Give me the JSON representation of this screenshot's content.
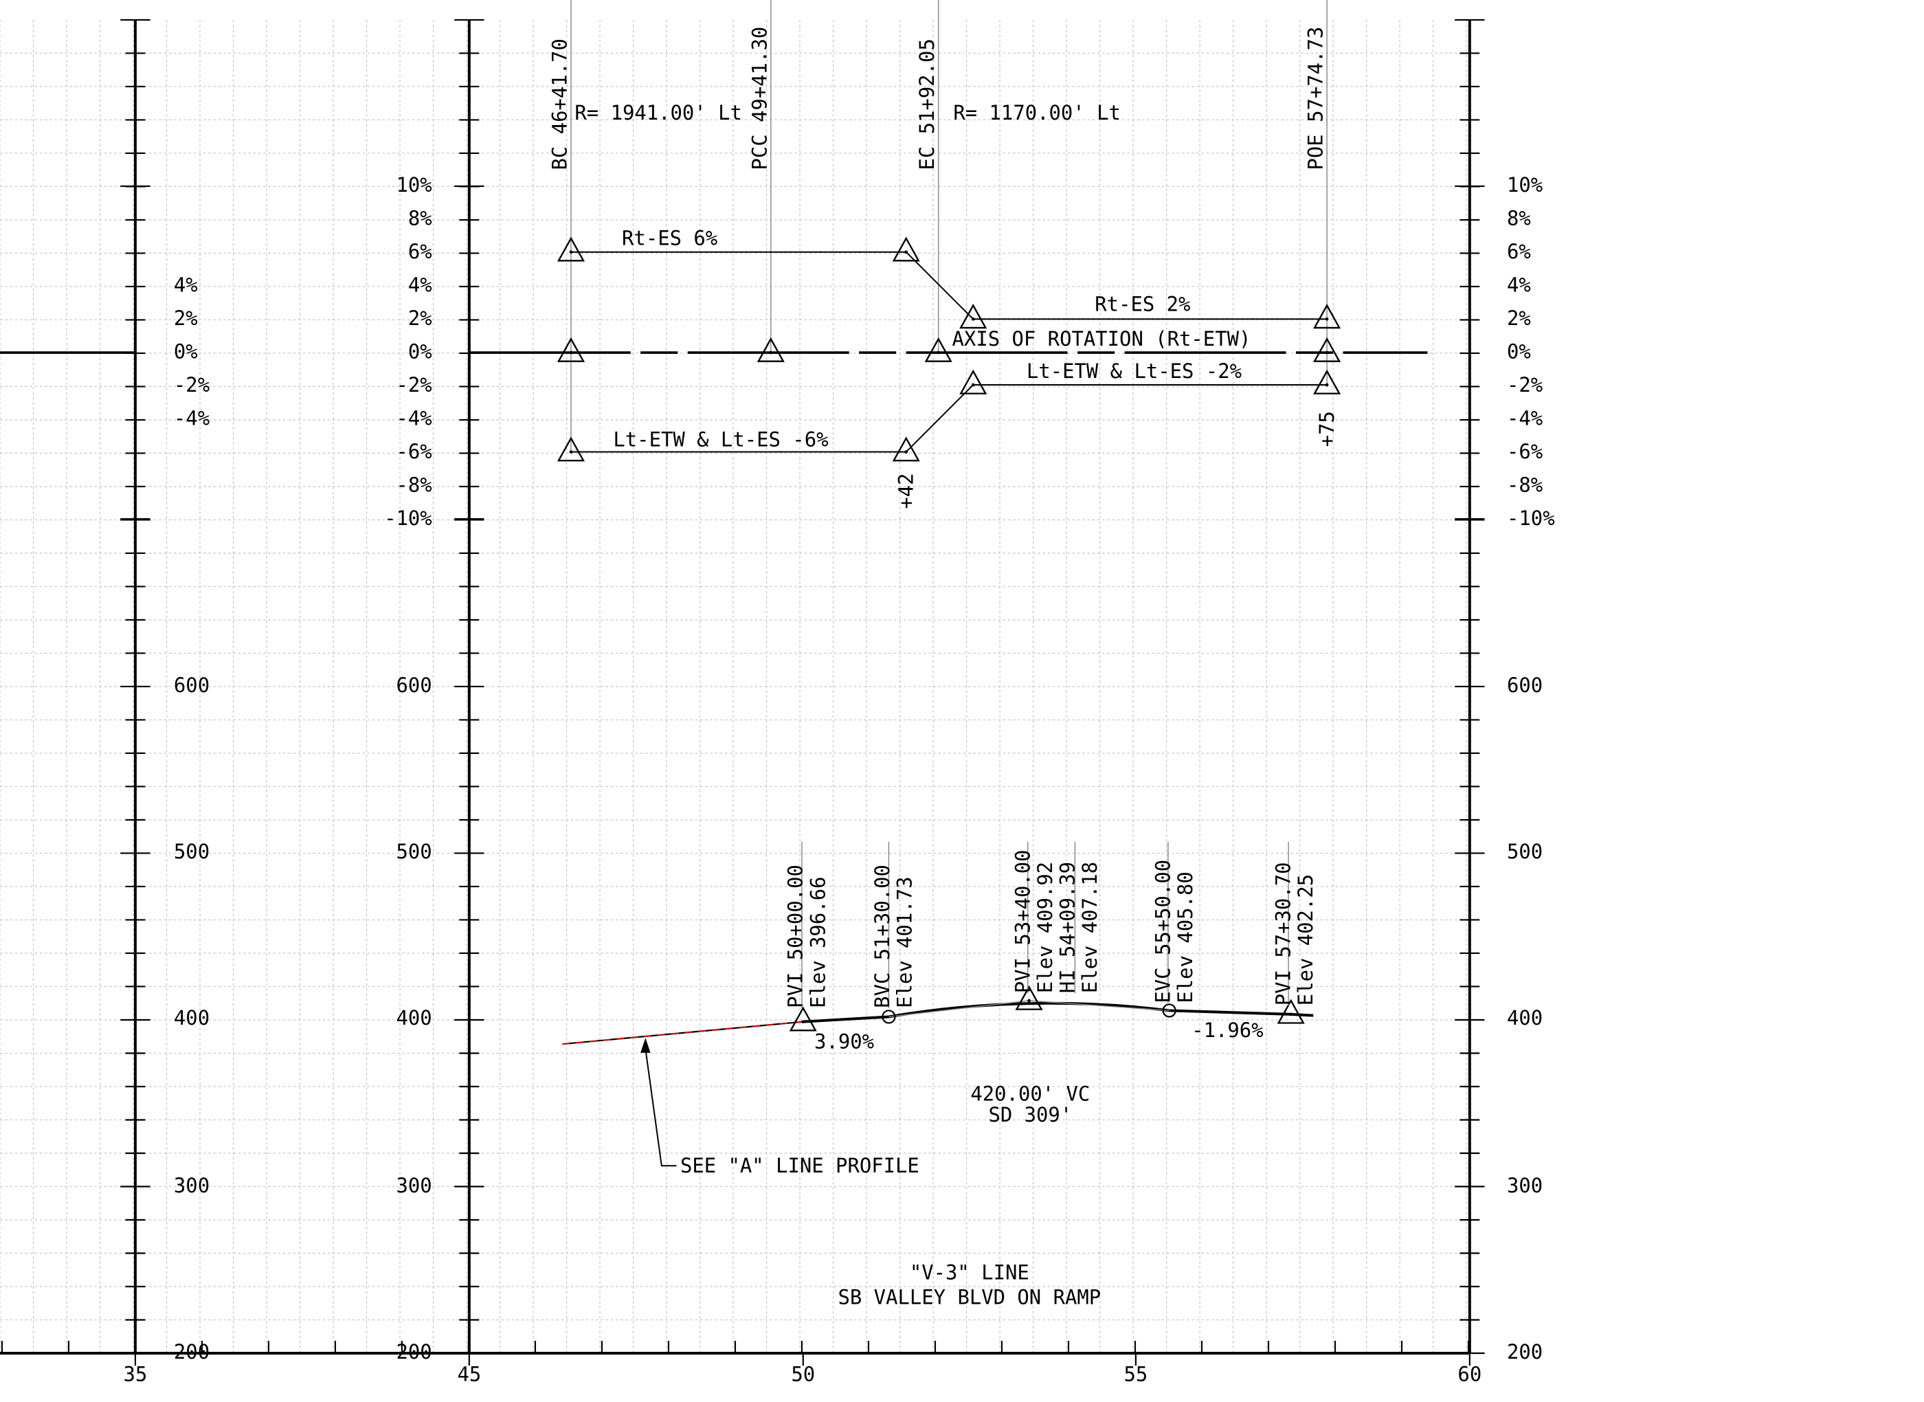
{
  "title": [
    "\"V-3\" LINE",
    "SB VALLEY BLVD ON RAMP"
  ],
  "station_axis": {
    "labels": [
      "35",
      "45",
      "50",
      "55",
      "60"
    ]
  },
  "elevation_axis": {
    "labels": [
      "600",
      "500",
      "400",
      "300",
      "200"
    ]
  },
  "superelevation_axis": {
    "labels": [
      "10%",
      "8%",
      "6%",
      "4%",
      "2%",
      "0%",
      "-2%",
      "-4%",
      "-6%",
      "-8%",
      "-10%"
    ]
  },
  "horizontal_alignment": {
    "stations": [
      "BC 46+41.70",
      "PCC 49+41.30",
      "EC 51+92.05",
      "POE 57+74.73"
    ],
    "curves": [
      "R= 1941.00' Lt",
      "R= 1170.00' Lt"
    ]
  },
  "superelevation_notes": [
    "Rt-ES 6%",
    "Rt-ES 2%",
    "AXIS OF ROTATION (Rt-ETW)",
    "Lt-ETW & Lt-ES -2%",
    "Lt-ETW & Lt-ES -6%",
    "+42",
    "+75"
  ],
  "vertical_alignment": {
    "points": [
      {
        "name": "PVI 50+00.00",
        "elev": "Elev 396.66"
      },
      {
        "name": "BVC 51+30.00",
        "elev": "Elev 401.73"
      },
      {
        "name": "PVI 53+40.00",
        "elev": "Elev 409.92"
      },
      {
        "name": "HI 54+09.39",
        "elev": "Elev 407.18"
      },
      {
        "name": "EVC 55+50.00",
        "elev": "Elev 405.80"
      },
      {
        "name": "PVI 57+30.70",
        "elev": "Elev 402.25"
      }
    ],
    "grades": [
      "3.90%",
      "-1.96%"
    ],
    "curve": [
      "420.00' VC",
      "SD 309'"
    ],
    "reference": "SEE \"A\" LINE PROFILE"
  }
}
